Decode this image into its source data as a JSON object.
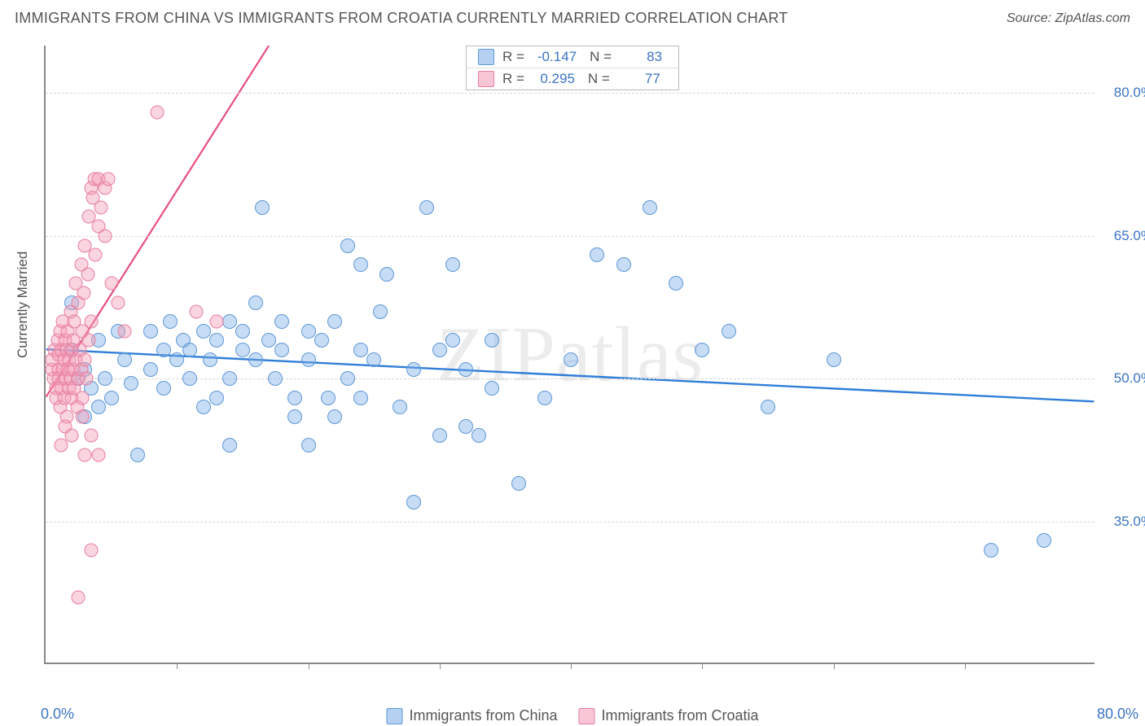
{
  "title": "IMMIGRANTS FROM CHINA VS IMMIGRANTS FROM CROATIA CURRENTLY MARRIED CORRELATION CHART",
  "source": "Source: ZipAtlas.com",
  "watermark": "ZIPatlas",
  "y_axis_label": "Currently Married",
  "x_min_label": "0.0%",
  "x_max_label": "80.0%",
  "chart": {
    "type": "scatter",
    "x_range": [
      0,
      80
    ],
    "y_range": [
      20,
      85
    ],
    "y_ticks": [
      35.0,
      50.0,
      65.0,
      80.0
    ],
    "y_tick_labels": [
      "35.0%",
      "50.0%",
      "65.0%",
      "80.0%"
    ],
    "x_ticks": [
      10,
      20,
      30,
      40,
      50,
      60,
      70
    ],
    "grid_color": "#d8d8d8",
    "axis_color": "#888888",
    "background_color": "#ffffff"
  },
  "legend_top": [
    {
      "swatch": "blue",
      "r_label": "R =",
      "r_value": "-0.147",
      "n_label": "N =",
      "n_value": "83"
    },
    {
      "swatch": "pink",
      "r_label": "R =",
      "r_value": "0.295",
      "n_label": "N =",
      "n_value": "77"
    }
  ],
  "legend_bottom": [
    {
      "swatch": "blue",
      "label": "Immigrants from China"
    },
    {
      "swatch": "pink",
      "label": "Immigrants from Croatia"
    }
  ],
  "series": {
    "blue": {
      "color_fill": "rgba(121,171,232,0.42)",
      "color_stroke": "#5e98d6",
      "marker_size": 18,
      "trend": {
        "x1": 0,
        "y1": 53.0,
        "x2": 80,
        "y2": 47.5,
        "color": "#2f7ed8",
        "width": 2.4
      },
      "points": [
        [
          2.5,
          50
        ],
        [
          2,
          53
        ],
        [
          3,
          51
        ],
        [
          3.5,
          49
        ],
        [
          4,
          54
        ],
        [
          4.5,
          50
        ],
        [
          5,
          48
        ],
        [
          5.5,
          55
        ],
        [
          6,
          52
        ],
        [
          6.5,
          49.5
        ],
        [
          7,
          42
        ],
        [
          4,
          47
        ],
        [
          8,
          55
        ],
        [
          8,
          51
        ],
        [
          9,
          53
        ],
        [
          9,
          49
        ],
        [
          9.5,
          56
        ],
        [
          10,
          52
        ],
        [
          10.5,
          54
        ],
        [
          11,
          50
        ],
        [
          11,
          53
        ],
        [
          12,
          47
        ],
        [
          12,
          55
        ],
        [
          12.5,
          52
        ],
        [
          13,
          54
        ],
        [
          13,
          48
        ],
        [
          14,
          50
        ],
        [
          14,
          56
        ],
        [
          14,
          43
        ],
        [
          15,
          53
        ],
        [
          15,
          55
        ],
        [
          16,
          52
        ],
        [
          16,
          58
        ],
        [
          16.5,
          68
        ],
        [
          17,
          54
        ],
        [
          17.5,
          50
        ],
        [
          18,
          56
        ],
        [
          18,
          53
        ],
        [
          19,
          46
        ],
        [
          19,
          48
        ],
        [
          20,
          55
        ],
        [
          20,
          43
        ],
        [
          20,
          52
        ],
        [
          21,
          54
        ],
        [
          21.5,
          48
        ],
        [
          22,
          56
        ],
        [
          22,
          46
        ],
        [
          23,
          50
        ],
        [
          23,
          64
        ],
        [
          24,
          53
        ],
        [
          24,
          62
        ],
        [
          24,
          48
        ],
        [
          25,
          52
        ],
        [
          25.5,
          57
        ],
        [
          26,
          61
        ],
        [
          27,
          47
        ],
        [
          28,
          51
        ],
        [
          28,
          37
        ],
        [
          29,
          68
        ],
        [
          30,
          53
        ],
        [
          30,
          44
        ],
        [
          31,
          54
        ],
        [
          31,
          62
        ],
        [
          32,
          45
        ],
        [
          32,
          51
        ],
        [
          33,
          44
        ],
        [
          34,
          49
        ],
        [
          34,
          54
        ],
        [
          36,
          39
        ],
        [
          38,
          48
        ],
        [
          40,
          52
        ],
        [
          42,
          63
        ],
        [
          44,
          62
        ],
        [
          46,
          68
        ],
        [
          48,
          60
        ],
        [
          50,
          53
        ],
        [
          52,
          55
        ],
        [
          55,
          47
        ],
        [
          60,
          52
        ],
        [
          72,
          32
        ],
        [
          76,
          33
        ],
        [
          2,
          58
        ],
        [
          3,
          46
        ]
      ]
    },
    "pink": {
      "color_fill": "rgba(244,160,185,0.45)",
      "color_stroke": "#e77ea1",
      "marker_size": 17,
      "trend": {
        "x1": 0,
        "y1": 48.0,
        "x2": 17,
        "y2": 85.0,
        "color": "#e84f7e",
        "width": 2.2
      },
      "points": [
        [
          0.5,
          51
        ],
        [
          0.5,
          52
        ],
        [
          0.6,
          50
        ],
        [
          0.7,
          53
        ],
        [
          0.8,
          49
        ],
        [
          0.8,
          48
        ],
        [
          0.9,
          54
        ],
        [
          1.0,
          51
        ],
        [
          1.0,
          52.5
        ],
        [
          1.0,
          50
        ],
        [
          1.1,
          47
        ],
        [
          1.1,
          55
        ],
        [
          1.2,
          53
        ],
        [
          1.2,
          49
        ],
        [
          1.3,
          51
        ],
        [
          1.3,
          56
        ],
        [
          1.4,
          48
        ],
        [
          1.4,
          52
        ],
        [
          1.5,
          50
        ],
        [
          1.5,
          54
        ],
        [
          1.6,
          46
        ],
        [
          1.6,
          53
        ],
        [
          1.7,
          51
        ],
        [
          1.7,
          55
        ],
        [
          1.8,
          49
        ],
        [
          1.8,
          52
        ],
        [
          1.9,
          57
        ],
        [
          1.9,
          50
        ],
        [
          2.0,
          53
        ],
        [
          2.0,
          48
        ],
        [
          2.1,
          54
        ],
        [
          2.1,
          51
        ],
        [
          2.2,
          56
        ],
        [
          2.2,
          49
        ],
        [
          2.3,
          60
        ],
        [
          2.3,
          52
        ],
        [
          2.4,
          47
        ],
        [
          2.5,
          58
        ],
        [
          2.5,
          50
        ],
        [
          2.6,
          53
        ],
        [
          2.7,
          62
        ],
        [
          2.7,
          51
        ],
        [
          2.8,
          55
        ],
        [
          2.8,
          48
        ],
        [
          2.9,
          59
        ],
        [
          3.0,
          52
        ],
        [
          3.0,
          64
        ],
        [
          3.1,
          50
        ],
        [
          3.2,
          61
        ],
        [
          3.3,
          54
        ],
        [
          3.3,
          67
        ],
        [
          3.5,
          56
        ],
        [
          3.5,
          70
        ],
        [
          3.6,
          69
        ],
        [
          3.7,
          71
        ],
        [
          3.8,
          63
        ],
        [
          4.0,
          66
        ],
        [
          4.0,
          71
        ],
        [
          4.2,
          68
        ],
        [
          4.5,
          70
        ],
        [
          4.5,
          65
        ],
        [
          4.8,
          71
        ],
        [
          5.0,
          60
        ],
        [
          5.5,
          58
        ],
        [
          6.0,
          55
        ],
        [
          3.0,
          42
        ],
        [
          4.0,
          42
        ],
        [
          3.5,
          44
        ],
        [
          1.5,
          45
        ],
        [
          2.0,
          44
        ],
        [
          2.8,
          46
        ],
        [
          1.2,
          43
        ],
        [
          3.5,
          32
        ],
        [
          2.5,
          27
        ],
        [
          8.5,
          78
        ],
        [
          11.5,
          57
        ],
        [
          13,
          56
        ]
      ]
    }
  }
}
